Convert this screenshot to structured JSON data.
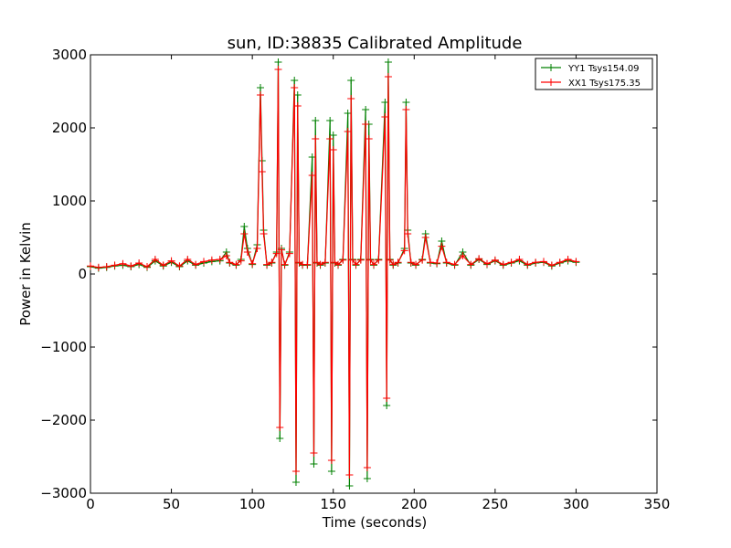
{
  "chart_data": {
    "type": "line",
    "title": "sun, ID:38835 Calibrated Amplitude",
    "xlabel": "Time (seconds)",
    "ylabel": "Power in Kelvin",
    "xlim": [
      0,
      350
    ],
    "ylim": [
      -3000,
      3000
    ],
    "xticks": [
      0,
      50,
      100,
      150,
      200,
      250,
      300,
      350
    ],
    "yticks": [
      -3000,
      -2000,
      -1000,
      0,
      1000,
      2000,
      3000
    ],
    "grid": false,
    "legend_position": "top-right",
    "series": [
      {
        "name": "YY1 Tsys154.09",
        "color": "#008000",
        "marker": "+",
        "x": [
          0,
          5,
          10,
          15,
          20,
          25,
          30,
          35,
          40,
          45,
          50,
          55,
          60,
          65,
          70,
          75,
          80,
          84,
          86,
          90,
          93,
          95,
          97,
          100,
          103,
          105,
          106,
          107,
          109,
          112,
          115,
          116,
          117,
          118,
          120,
          123,
          126,
          127,
          128,
          129,
          131,
          134,
          137,
          138,
          139,
          140,
          142,
          145,
          148,
          149,
          150,
          151,
          153,
          156,
          159,
          160,
          161,
          162,
          164,
          167,
          170,
          171,
          172,
          173,
          175,
          178,
          182,
          183,
          184,
          185,
          187,
          190,
          194,
          195,
          196,
          198,
          201,
          205,
          207,
          210,
          214,
          217,
          220,
          225,
          230,
          235,
          240,
          245,
          250,
          255,
          260,
          265,
          270,
          275,
          280,
          285,
          290,
          295,
          300
        ],
        "y": [
          100,
          80,
          90,
          110,
          120,
          100,
          130,
          90,
          180,
          110,
          160,
          100,
          180,
          120,
          150,
          170,
          180,
          300,
          150,
          120,
          200,
          650,
          350,
          130,
          400,
          2550,
          1550,
          600,
          120,
          150,
          300,
          2900,
          -2250,
          350,
          120,
          300,
          2650,
          -2850,
          2450,
          150,
          120,
          120,
          1600,
          -2600,
          2100,
          150,
          120,
          150,
          2100,
          -2700,
          1900,
          150,
          120,
          200,
          2200,
          -2900,
          2650,
          200,
          120,
          200,
          2250,
          -2800,
          2050,
          200,
          120,
          200,
          2350,
          -1800,
          2900,
          200,
          120,
          150,
          350,
          2350,
          600,
          150,
          120,
          200,
          550,
          150,
          140,
          450,
          150,
          120,
          300,
          120,
          200,
          130,
          180,
          120,
          150,
          180,
          120,
          150,
          160,
          110,
          150,
          180,
          160
        ]
      },
      {
        "name": "XX1 Tsys175.35",
        "color": "#ff0000",
        "marker": "+",
        "x": [
          0,
          5,
          10,
          15,
          20,
          25,
          30,
          35,
          40,
          45,
          50,
          55,
          60,
          65,
          70,
          75,
          80,
          84,
          86,
          90,
          93,
          95,
          97,
          100,
          103,
          105,
          106,
          107,
          109,
          112,
          115,
          116,
          117,
          118,
          120,
          123,
          126,
          127,
          128,
          129,
          131,
          134,
          137,
          138,
          139,
          140,
          142,
          145,
          148,
          149,
          150,
          151,
          153,
          156,
          159,
          160,
          161,
          162,
          164,
          167,
          170,
          171,
          172,
          173,
          175,
          178,
          182,
          183,
          184,
          185,
          187,
          190,
          194,
          195,
          196,
          198,
          201,
          205,
          207,
          210,
          214,
          217,
          220,
          225,
          230,
          235,
          240,
          245,
          250,
          255,
          260,
          265,
          270,
          275,
          280,
          285,
          290,
          295,
          300
        ],
        "y": [
          110,
          90,
          100,
          120,
          140,
          110,
          150,
          100,
          200,
          120,
          180,
          110,
          200,
          130,
          170,
          190,
          200,
          250,
          160,
          130,
          180,
          550,
          300,
          140,
          350,
          2450,
          1400,
          550,
          130,
          160,
          280,
          2800,
          -2100,
          330,
          130,
          280,
          2550,
          -2700,
          2300,
          160,
          130,
          130,
          1350,
          -2450,
          1850,
          160,
          130,
          160,
          1850,
          -2550,
          1700,
          160,
          130,
          190,
          1950,
          -2750,
          2400,
          190,
          130,
          190,
          2050,
          -2650,
          1850,
          190,
          130,
          190,
          2150,
          -1700,
          2700,
          190,
          130,
          160,
          320,
          2250,
          550,
          160,
          130,
          190,
          500,
          160,
          150,
          380,
          160,
          130,
          250,
          130,
          210,
          140,
          190,
          130,
          160,
          200,
          130,
          160,
          170,
          120,
          160,
          200,
          170
        ]
      }
    ]
  }
}
